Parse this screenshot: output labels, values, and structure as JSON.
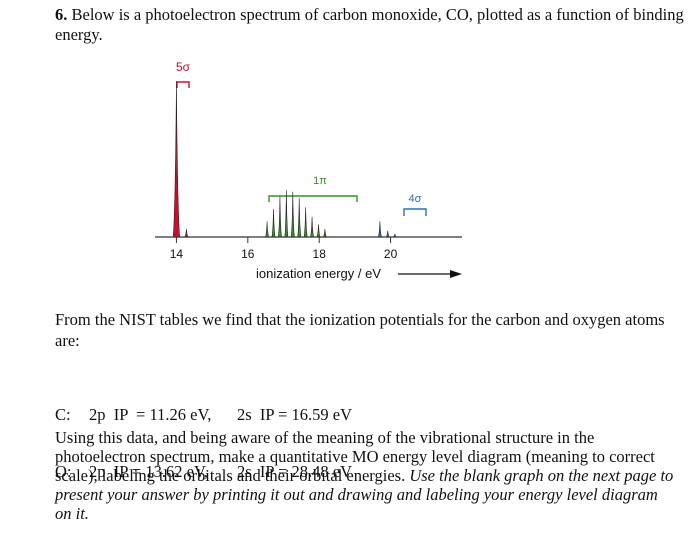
{
  "question": {
    "number": "6.",
    "text": "Below is a photoelectron spectrum of carbon monoxide, CO, plotted as a function of binding energy."
  },
  "figure": {
    "band_labels": {
      "five_sigma": "5σ",
      "one_pi": "1π",
      "four_sigma": "4σ"
    },
    "x_ticks": [
      "14",
      "16",
      "18",
      "20"
    ],
    "xlabel": "ionization energy / eV",
    "colors": {
      "five_sigma": "#c8102e",
      "one_pi": "#3a8f2a",
      "four_sigma": "#2f6fb0",
      "baseline": "#333333"
    }
  },
  "chart_data": {
    "type": "line",
    "xlabel": "ionization energy / eV",
    "x_ticks": [
      14,
      16,
      18,
      20
    ],
    "xlim": [
      13.4,
      22.0
    ],
    "series": [
      {
        "name": "5σ",
        "peaks_eV": [
          14.0,
          14.28
        ],
        "relative_heights": [
          1.0,
          0.05
        ]
      },
      {
        "name": "1π",
        "peaks_eV": [
          16.54,
          16.72,
          16.9,
          17.08,
          17.26,
          17.44,
          17.62,
          17.8,
          17.98,
          18.16
        ],
        "relative_heights": [
          0.1,
          0.18,
          0.26,
          0.3,
          0.29,
          0.25,
          0.19,
          0.13,
          0.08,
          0.05
        ]
      },
      {
        "name": "4σ",
        "peaks_eV": [
          19.7,
          19.92,
          20.12
        ],
        "relative_heights": [
          0.1,
          0.04,
          0.02
        ]
      }
    ],
    "grid": false
  },
  "paragraph2": "From the NIST tables we find that the ionization potentials for the carbon and oxygen atoms are:",
  "ionization": {
    "c_label": "C:",
    "c_2p": "2p  IP  = 11.26 eV,",
    "c_2s": "2s  IP = 16.59 eV",
    "o_label": "O:",
    "o_2p": "2p  IP = 13.62 eV,",
    "o_2s": "2s  IP = 28.48 eV"
  },
  "paragraph3": {
    "normal": "Using this data, and being aware of the meaning of the vibrational structure in the photoelectron spectrum, make a quantitative MO energy level diagram (meaning to correct scale), labeling the orbitals and their orbital energies.",
    "italic": "Use the blank graph on the next page to present your answer by printing it out and drawing and labeling your energy level diagram on it."
  }
}
